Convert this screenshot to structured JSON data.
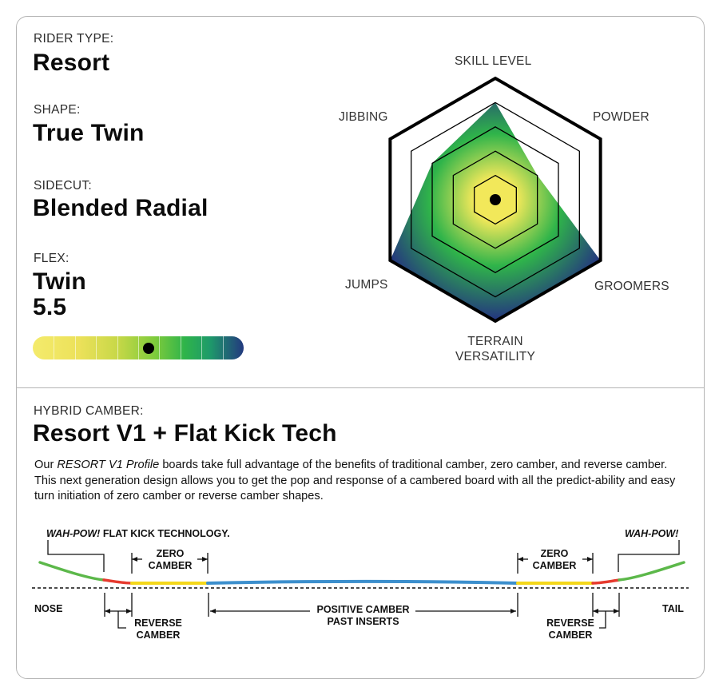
{
  "specs": {
    "rider_type": {
      "label": "RIDER TYPE:",
      "value": "Resort"
    },
    "shape": {
      "label": "SHAPE:",
      "value": "True Twin"
    },
    "sidecut": {
      "label": "SIDECUT:",
      "value": "Blended Radial"
    },
    "flex": {
      "label": "FLEX:",
      "value_line1": "Twin",
      "value_line2": "5.5",
      "rating": 5.5,
      "scale_max": 10
    }
  },
  "radar": {
    "axes": [
      "SKILL LEVEL",
      "POWDER",
      "GROOMERS",
      "TERRAIN VERSATILITY",
      "JUMPS",
      "JIBBING"
    ],
    "terrain_line1": "TERRAIN",
    "terrain_line2": "VERSATILITY",
    "rings": 5,
    "values": [
      4,
      2,
      5,
      5,
      5,
      3
    ],
    "colors": {
      "center": "#f2e85a",
      "mid": "#2fb44a",
      "outer": "#24367f"
    }
  },
  "camber": {
    "label": "HYBRID CAMBER:",
    "title": "Resort V1 + Flat Kick Tech",
    "desc_italic": "RESORT V1 Profile",
    "desc_pre": "Our ",
    "desc_post": " boards take full advantage of the benefits of traditional camber, zero camber, and reverse camber. This next generation design allows you to get the pop and response of a cambered board with all the predict-ability and easy turn initiation of zero camber or reverse camber shapes.",
    "diagram": {
      "wahpow_left": "WAH-POW!",
      "flat_kick": " FLAT KICK TECHNOLOGY.",
      "wahpow_right": "WAH-POW!",
      "zero_camber": "ZERO\nCAMBER",
      "reverse_camber": "REVERSE\nCAMBER",
      "positive_camber": "POSITIVE CAMBER\nPAST INSERTS",
      "nose": "NOSE",
      "tail": "TAIL",
      "colors": {
        "kick": "#5cb84a",
        "reverse": "#e63a2e",
        "zero": "#f4d71a",
        "positive": "#3c8fcd"
      }
    }
  }
}
